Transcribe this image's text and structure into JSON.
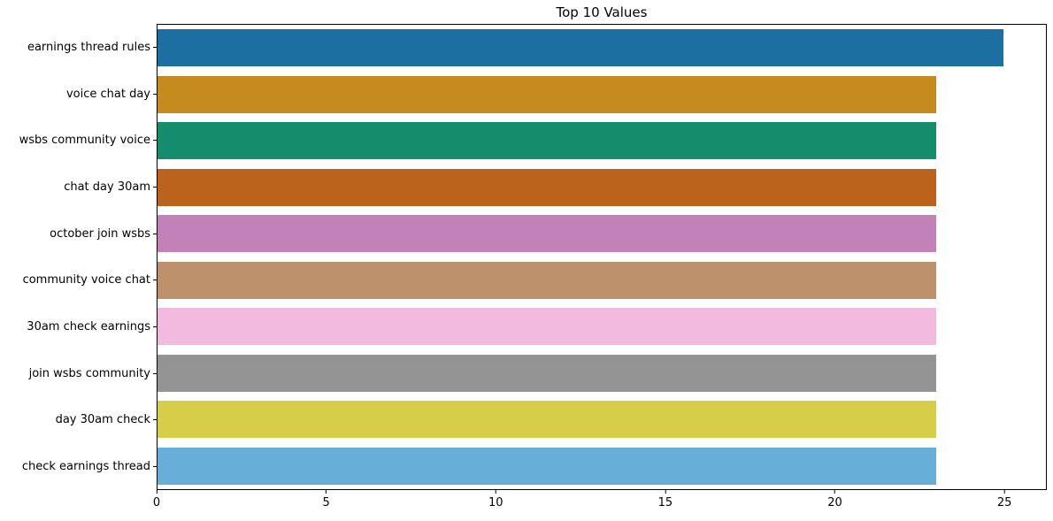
{
  "chart_data": {
    "type": "bar",
    "orientation": "horizontal",
    "title": "Top 10 Values",
    "xlabel": "",
    "ylabel": "",
    "categories": [
      "earnings thread rules",
      "voice chat day",
      "wsbs community voice",
      "chat day 30am",
      "october join wsbs",
      "community voice chat",
      "30am check earnings",
      "join wsbs community",
      "day 30am check",
      "check earnings thread"
    ],
    "values": [
      25,
      23,
      23,
      23,
      23,
      23,
      23,
      23,
      23,
      23
    ],
    "bar_colors": [
      "#1b6fa1",
      "#c58b1f",
      "#158c6b",
      "#bb621c",
      "#c282b8",
      "#bd916c",
      "#f2badf",
      "#949494",
      "#d6ce48",
      "#67afd8"
    ],
    "xlim": [
      0,
      26.25
    ],
    "xticks": [
      0,
      5,
      10,
      15,
      20,
      25
    ],
    "grid": false,
    "legend": null,
    "bar_height_ratio": 0.8,
    "frame": true,
    "background_color": "#ffffff",
    "text_color": "#000000"
  }
}
